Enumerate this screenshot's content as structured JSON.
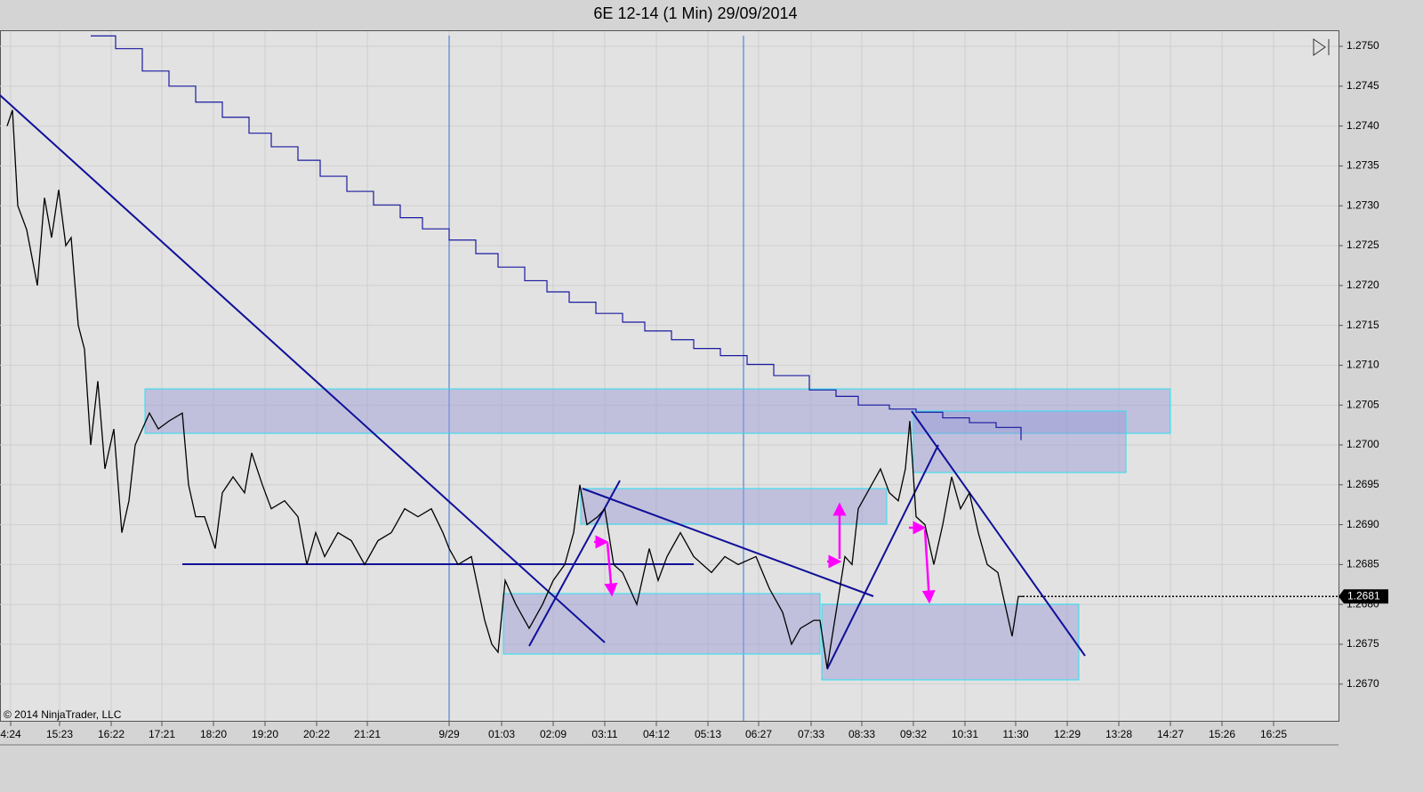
{
  "chart_data": {
    "type": "line",
    "title": "6E 12-14 (1 Min)  29/09/2014",
    "copyright": "© 2014 NinjaTrader, LLC",
    "last_price": 1.2681,
    "xlim": [
      0,
      1505
    ],
    "xticks": [
      {
        "value": 12,
        "label": "4:24"
      },
      {
        "value": 67,
        "label": "15:23"
      },
      {
        "value": 125,
        "label": "16:22"
      },
      {
        "value": 182,
        "label": "17:21"
      },
      {
        "value": 240,
        "label": "18:20"
      },
      {
        "value": 298,
        "label": "19:20"
      },
      {
        "value": 356,
        "label": "20:22"
      },
      {
        "value": 413,
        "label": "21:21"
      },
      {
        "value": 505,
        "label": "9/29"
      },
      {
        "value": 564,
        "label": "01:03"
      },
      {
        "value": 622,
        "label": "02:09"
      },
      {
        "value": 680,
        "label": "03:11"
      },
      {
        "value": 738,
        "label": "04:12"
      },
      {
        "value": 796,
        "label": "05:13"
      },
      {
        "value": 853,
        "label": "06:27"
      },
      {
        "value": 912,
        "label": "07:33"
      },
      {
        "value": 969,
        "label": "08:33"
      },
      {
        "value": 1027,
        "label": "09:32"
      },
      {
        "value": 1085,
        "label": "10:31"
      },
      {
        "value": 1142,
        "label": "11:30"
      },
      {
        "value": 1200,
        "label": "12:29"
      },
      {
        "value": 1258,
        "label": "13:28"
      },
      {
        "value": 1316,
        "label": "14:27"
      },
      {
        "value": 1374,
        "label": "15:26"
      },
      {
        "value": 1432,
        "label": "16:25"
      }
    ],
    "ylim": [
      1.26654,
      1.27519
    ],
    "yticks": [
      {
        "value": 1.267,
        "label": "1.2670"
      },
      1.2675,
      {
        "value": 1.268,
        "label": "1.2680"
      },
      1.2685,
      {
        "value": 1.269,
        "label": "1.2690"
      },
      1.2695,
      {
        "value": 1.27,
        "label": "1.2700"
      },
      1.2705,
      {
        "value": 1.271,
        "label": "1.2710"
      },
      1.2715,
      {
        "value": 1.272,
        "label": "1.2720"
      },
      1.2725,
      {
        "value": 1.273,
        "label": "1.2730"
      },
      1.2735,
      {
        "value": 1.274,
        "label": "1.2740"
      },
      1.2745,
      {
        "value": 1.275,
        "label": "1.2750"
      }
    ],
    "grid": true,
    "series": [
      {
        "color": "#000000",
        "step": false,
        "x": [
          8,
          14,
          20,
          30,
          42,
          50,
          58,
          66,
          74,
          80,
          88,
          95,
          102,
          110,
          118,
          128,
          137,
          145,
          152,
          160,
          168,
          178,
          190,
          205,
          212,
          220,
          230,
          242,
          250,
          262,
          275,
          283,
          295,
          305,
          320,
          335,
          345,
          355,
          365,
          380,
          395,
          410,
          425,
          440,
          455,
          470,
          485,
          498,
          505,
          515,
          530,
          545,
          553,
          560,
          568,
          580,
          595,
          610,
          622,
          635,
          645,
          652,
          660,
          672,
          680,
          690,
          700,
          716,
          730,
          740,
          750,
          765,
          780,
          800,
          815,
          830,
          850,
          865,
          880,
          890,
          900,
          915,
          922,
          930,
          940,
          950,
          958,
          965,
          975,
          990,
          1000,
          1010,
          1018,
          1023,
          1030,
          1040,
          1050,
          1060,
          1070,
          1080,
          1090,
          1100,
          1110,
          1122,
          1130,
          1138,
          1145,
          1150
        ],
        "values": [
          1.274,
          1.2742,
          1.273,
          1.2727,
          1.272,
          1.2731,
          1.2726,
          1.2732,
          1.2725,
          1.2726,
          1.2715,
          1.2712,
          1.27,
          1.2708,
          1.2697,
          1.2702,
          1.2689,
          1.2693,
          1.27,
          1.2702,
          1.2704,
          1.2702,
          1.2703,
          1.2704,
          1.2695,
          1.2691,
          1.2691,
          1.2687,
          1.2694,
          1.2696,
          1.2694,
          1.2699,
          1.2695,
          1.2692,
          1.2693,
          1.2691,
          1.2685,
          1.2689,
          1.2686,
          1.2689,
          1.2688,
          1.2685,
          1.2688,
          1.2689,
          1.2692,
          1.2691,
          1.2692,
          1.2689,
          1.2687,
          1.2685,
          1.2686,
          1.2678,
          1.2675,
          1.2674,
          1.2683,
          1.268,
          1.2677,
          1.268,
          1.2683,
          1.2685,
          1.2689,
          1.2695,
          1.269,
          1.2691,
          1.2692,
          1.2685,
          1.2684,
          1.268,
          1.2687,
          1.2683,
          1.2686,
          1.2689,
          1.2686,
          1.2684,
          1.2686,
          1.2685,
          1.2686,
          1.2682,
          1.2679,
          1.2675,
          1.2677,
          1.2678,
          1.2678,
          1.2672,
          1.2679,
          1.2686,
          1.2685,
          1.2692,
          1.2694,
          1.2697,
          1.2694,
          1.2693,
          1.2697,
          1.2703,
          1.2691,
          1.269,
          1.2685,
          1.269,
          1.2696,
          1.2692,
          1.2694,
          1.2689,
          1.2685,
          1.2684,
          1.268,
          1.2676,
          1.2681,
          1.2681
        ]
      },
      {
        "color": "#1a1aa0",
        "step": true,
        "x": [
          102,
          130,
          160,
          190,
          220,
          250,
          280,
          305,
          335,
          360,
          390,
          420,
          450,
          475,
          505,
          535,
          560,
          590,
          615,
          640,
          670,
          700,
          725,
          755,
          780,
          810,
          840,
          870,
          910,
          940,
          965,
          1000,
          1030,
          1060,
          1090,
          1120,
          1148
        ],
        "values": [
          1.27513,
          1.27497,
          1.27469,
          1.2745,
          1.2743,
          1.27411,
          1.27391,
          1.27374,
          1.27357,
          1.27337,
          1.27318,
          1.27301,
          1.27285,
          1.27271,
          1.27257,
          1.2724,
          1.27223,
          1.27206,
          1.27192,
          1.27179,
          1.27165,
          1.27154,
          1.27143,
          1.27132,
          1.27121,
          1.27112,
          1.27101,
          1.27087,
          1.27069,
          1.27061,
          1.2705,
          1.27045,
          1.27041,
          1.27034,
          1.27028,
          1.27022,
          1.27006
        ]
      }
    ]
  }
}
